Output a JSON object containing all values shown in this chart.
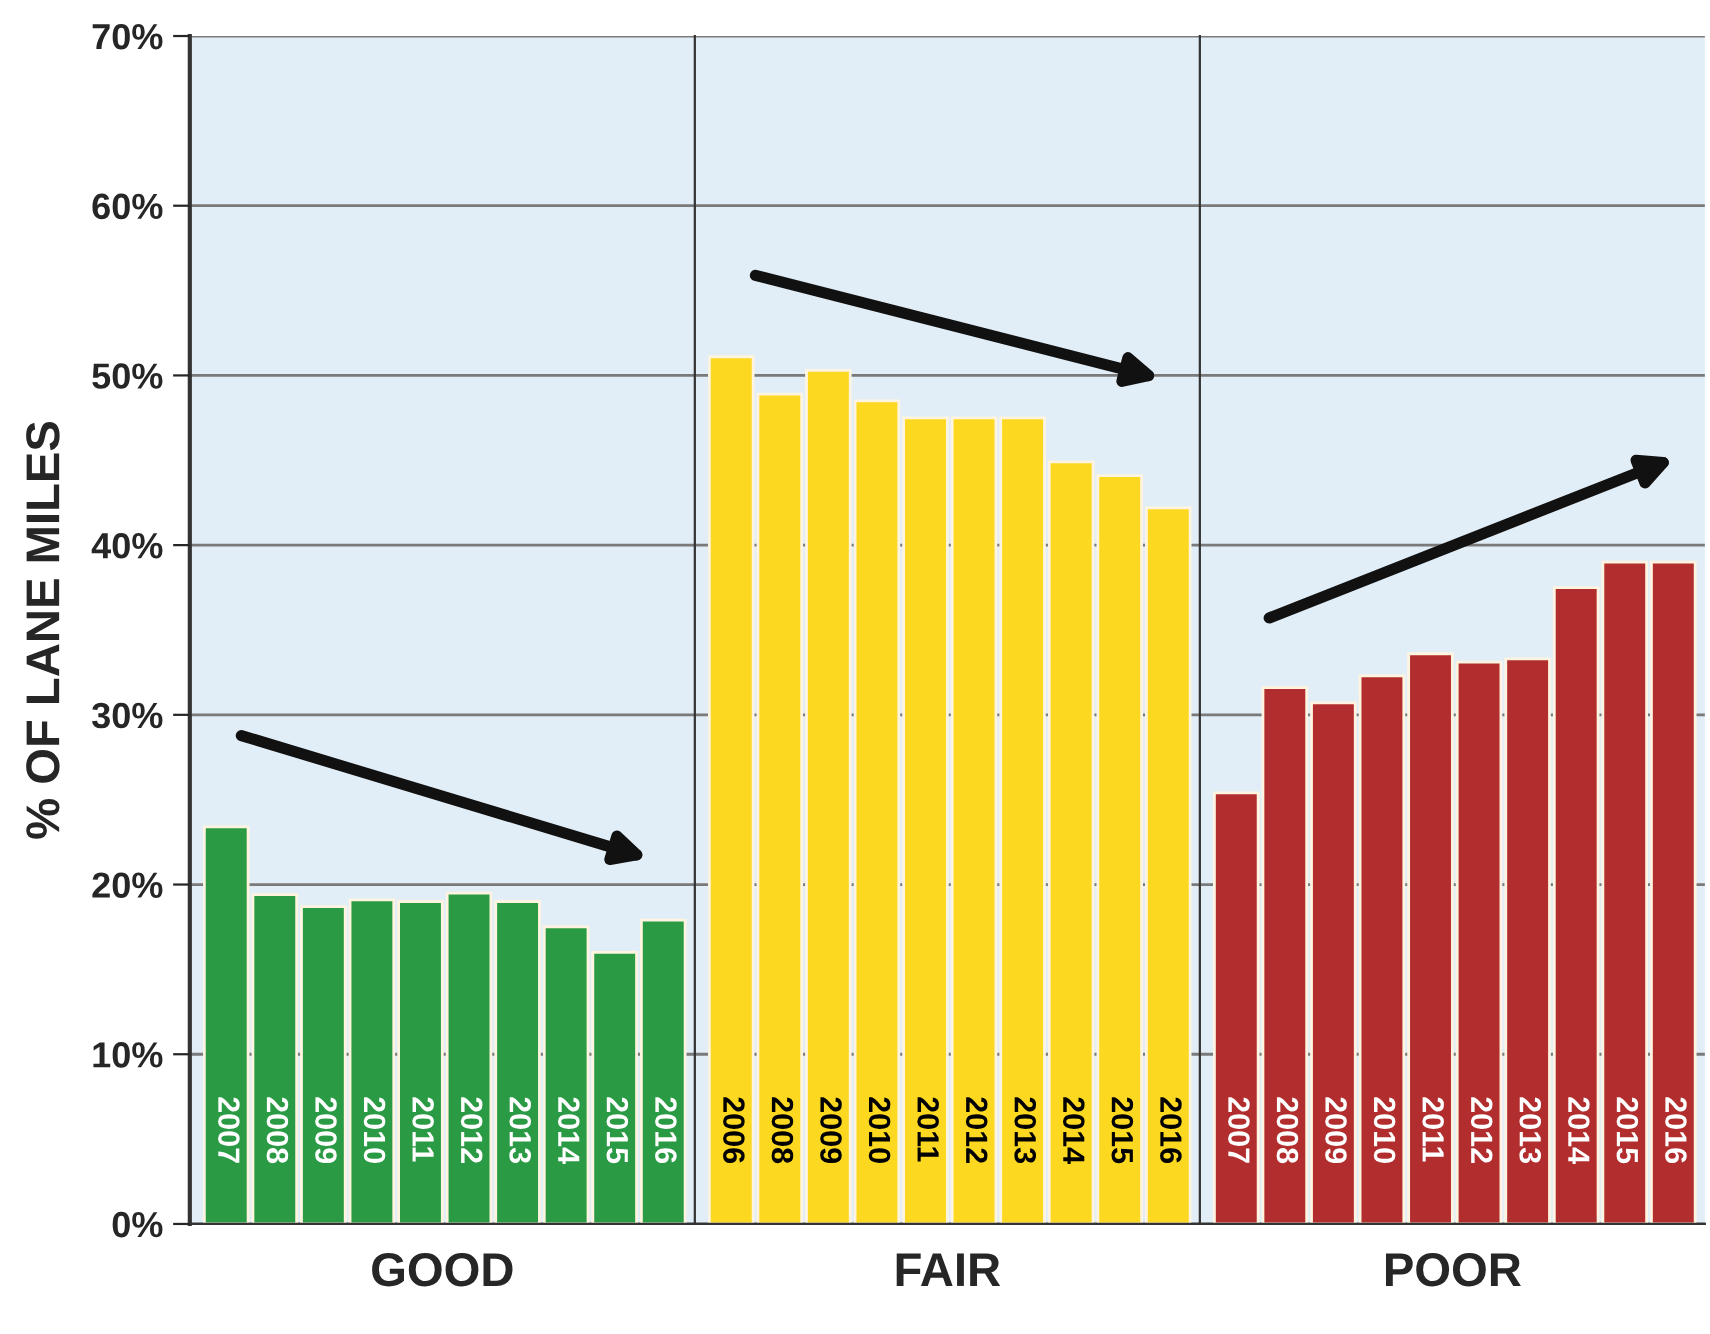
{
  "chart_data": [
    {
      "type": "bar",
      "categories": [
        "2007",
        "2008",
        "2009",
        "2010",
        "2011",
        "2012",
        "2013",
        "2014",
        "2015",
        "2016"
      ],
      "values": [
        23.4,
        19.4,
        18.7,
        19.1,
        19.0,
        19.5,
        19.0,
        17.5,
        16.0,
        17.9
      ],
      "color": "#2a9a44",
      "xlabel": "GOOD",
      "ylabel": "% OF LANE MILES",
      "ylim": [
        0,
        70
      ],
      "yticks": [
        {
          "value": 0,
          "label": "0%"
        },
        {
          "value": 10,
          "label": "10%"
        },
        {
          "value": 20,
          "label": "20%"
        },
        {
          "value": 30,
          "label": "30%"
        },
        {
          "value": 40,
          "label": "40%"
        },
        {
          "value": 50,
          "label": "50%"
        },
        {
          "value": 60,
          "label": "60%"
        },
        {
          "value": 70,
          "label": "70%"
        }
      ],
      "grid": "y"
    },
    {
      "type": "bar",
      "categories": [
        "2006",
        "2008",
        "2009",
        "2010",
        "2011",
        "2012",
        "2013",
        "2014",
        "2015",
        "2016"
      ],
      "values": [
        51.1,
        48.9,
        50.3,
        48.5,
        47.5,
        47.5,
        47.5,
        44.9,
        44.1,
        42.2
      ],
      "color": "#fdd820",
      "xlabel": "FAIR",
      "ylim": [
        0,
        70
      ],
      "yticks": [
        0,
        10,
        20,
        30,
        40,
        50,
        60,
        70
      ],
      "grid": "y",
      "tick_labels": "x"
    },
    {
      "type": "bar",
      "categories": [
        "2007",
        "2008",
        "2009",
        "2010",
        "2011",
        "2012",
        "2013",
        "2014",
        "2015",
        "2016"
      ],
      "values": [
        25.4,
        31.6,
        30.7,
        32.3,
        33.6,
        33.1,
        33.3,
        37.5,
        39.0,
        39.0
      ],
      "color": "#b22e2e",
      "xlabel": "POOR",
      "ylim": [
        0,
        70
      ],
      "yticks": [
        0,
        10,
        20,
        30,
        40,
        50,
        60,
        70
      ],
      "grid": "y",
      "tick_labels": "x"
    }
  ]
}
